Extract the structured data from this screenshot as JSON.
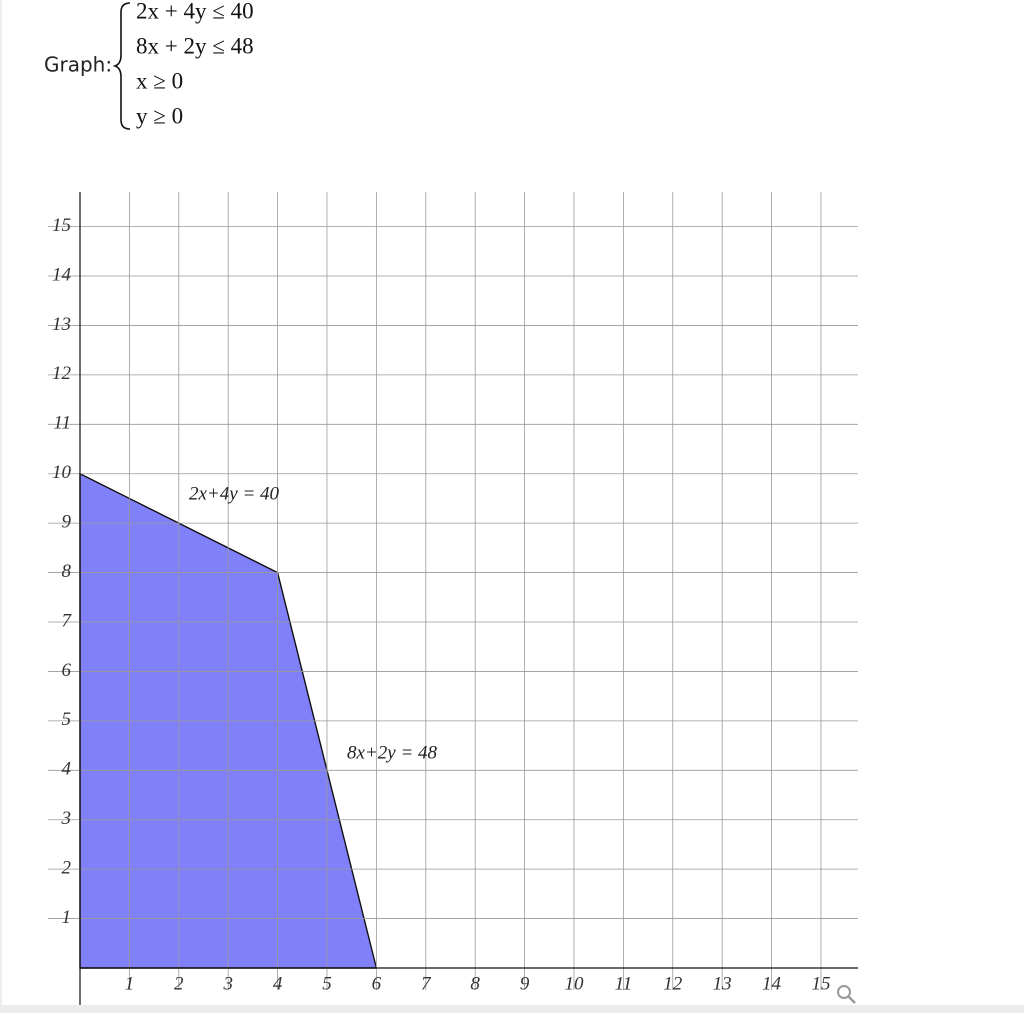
{
  "header": {
    "label": "Graph:",
    "inequalities": [
      "2x + 4y ≤ 40",
      "8x + 2y ≤ 48",
      "x ≥ 0",
      "y ≥ 0"
    ]
  },
  "chart_data": {
    "type": "region",
    "x": [
      0,
      4,
      6,
      0
    ],
    "y": [
      10,
      8,
      0,
      0
    ],
    "color": "#8080f8",
    "annotations": [
      "2x+4y = 40",
      "8x+2y = 48"
    ],
    "xlim": [
      0,
      15.75
    ],
    "ylim": [
      0,
      15.7
    ],
    "xticks": [
      1,
      2,
      3,
      4,
      5,
      6,
      7,
      8,
      9,
      10,
      11,
      12,
      13,
      14,
      15
    ],
    "yticks": [
      1,
      2,
      3,
      4,
      5,
      6,
      7,
      8,
      9,
      10,
      11,
      12,
      13,
      14,
      15
    ],
    "grid": true
  }
}
